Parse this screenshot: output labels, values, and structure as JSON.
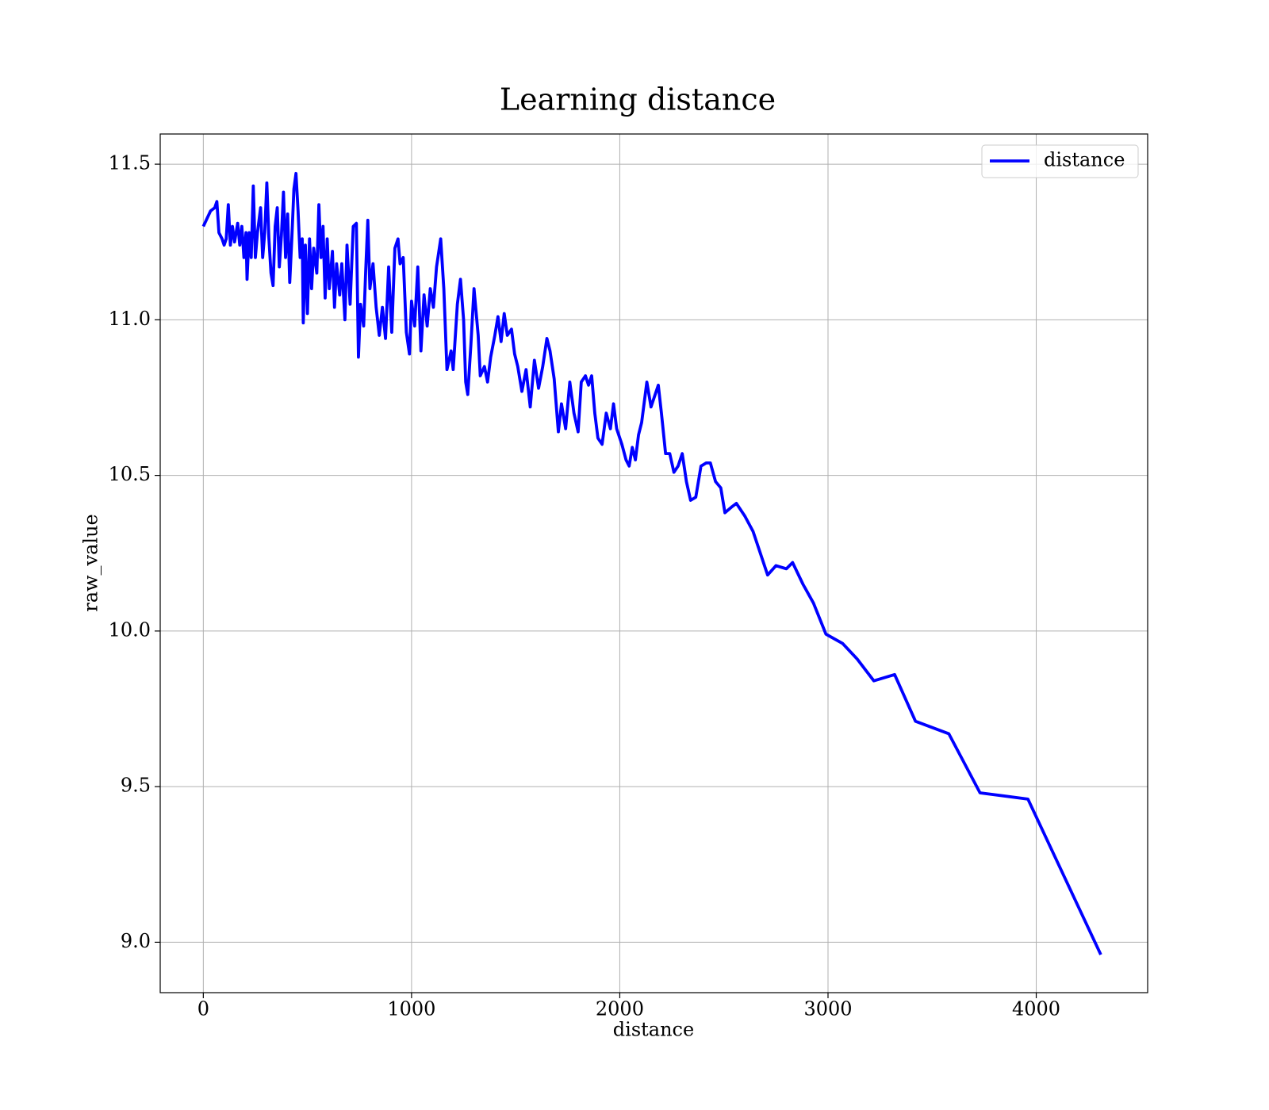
{
  "chart_data": {
    "type": "line",
    "title": "Learning distance",
    "xlabel": "distance",
    "ylabel": "raw_value",
    "x": [
      0,
      35,
      55,
      65,
      75,
      90,
      100,
      110,
      120,
      130,
      140,
      150,
      165,
      175,
      185,
      195,
      205,
      210,
      220,
      230,
      240,
      250,
      260,
      275,
      285,
      295,
      305,
      315,
      325,
      335,
      345,
      355,
      365,
      375,
      385,
      395,
      405,
      415,
      425,
      435,
      445,
      455,
      465,
      475,
      480,
      490,
      500,
      510,
      520,
      530,
      545,
      555,
      565,
      575,
      585,
      595,
      605,
      620,
      630,
      640,
      655,
      665,
      680,
      690,
      705,
      720,
      735,
      745,
      755,
      770,
      780,
      790,
      800,
      815,
      830,
      845,
      860,
      875,
      890,
      905,
      920,
      935,
      945,
      960,
      975,
      990,
      1000,
      1015,
      1030,
      1045,
      1060,
      1075,
      1090,
      1105,
      1120,
      1140,
      1155,
      1170,
      1190,
      1200,
      1220,
      1235,
      1250,
      1260,
      1270,
      1285,
      1300,
      1320,
      1330,
      1350,
      1365,
      1380,
      1400,
      1415,
      1430,
      1445,
      1460,
      1480,
      1495,
      1510,
      1530,
      1550,
      1570,
      1590,
      1610,
      1630,
      1650,
      1665,
      1685,
      1705,
      1720,
      1740,
      1760,
      1780,
      1800,
      1815,
      1835,
      1850,
      1865,
      1880,
      1895,
      1915,
      1935,
      1955,
      1970,
      1985,
      2010,
      2030,
      2045,
      2060,
      2075,
      2090,
      2105,
      2130,
      2150,
      2185,
      2200,
      2220,
      2240,
      2260,
      2280,
      2300,
      2320,
      2340,
      2365,
      2390,
      2415,
      2435,
      2460,
      2485,
      2505,
      2540,
      2560,
      2600,
      2640,
      2710,
      2750,
      2800,
      2830,
      2880,
      2930,
      2990,
      3070,
      3140,
      3220,
      3320,
      3420,
      3580,
      3730,
      3960,
      4310
    ],
    "series": [
      {
        "name": "distance",
        "color": "#0000ff",
        "values": [
          11.3,
          11.35,
          11.36,
          11.38,
          11.28,
          11.26,
          11.24,
          11.26,
          11.37,
          11.24,
          11.3,
          11.25,
          11.31,
          11.24,
          11.3,
          11.2,
          11.28,
          11.13,
          11.28,
          11.2,
          11.43,
          11.2,
          11.28,
          11.36,
          11.2,
          11.28,
          11.44,
          11.26,
          11.15,
          11.11,
          11.3,
          11.36,
          11.17,
          11.27,
          11.41,
          11.2,
          11.34,
          11.12,
          11.26,
          11.42,
          11.47,
          11.35,
          11.2,
          11.26,
          10.99,
          11.24,
          11.02,
          11.26,
          11.1,
          11.23,
          11.15,
          11.37,
          11.2,
          11.3,
          11.07,
          11.26,
          11.1,
          11.22,
          11.04,
          11.18,
          11.08,
          11.18,
          11.0,
          11.24,
          11.05,
          11.3,
          11.31,
          10.88,
          11.05,
          10.98,
          11.16,
          11.32,
          11.1,
          11.18,
          11.04,
          10.95,
          11.04,
          10.94,
          11.17,
          10.96,
          11.23,
          11.26,
          11.18,
          11.2,
          10.96,
          10.89,
          11.06,
          10.98,
          11.17,
          10.9,
          11.08,
          10.98,
          11.1,
          11.04,
          11.17,
          11.26,
          11.1,
          10.84,
          10.9,
          10.84,
          11.05,
          11.13,
          11.0,
          10.8,
          10.76,
          10.92,
          11.1,
          10.95,
          10.82,
          10.85,
          10.8,
          10.88,
          10.95,
          11.01,
          10.93,
          11.02,
          10.95,
          10.97,
          10.89,
          10.85,
          10.77,
          10.84,
          10.72,
          10.87,
          10.78,
          10.85,
          10.94,
          10.9,
          10.81,
          10.64,
          10.73,
          10.65,
          10.8,
          10.7,
          10.64,
          10.8,
          10.82,
          10.79,
          10.82,
          10.7,
          10.62,
          10.6,
          10.7,
          10.65,
          10.73,
          10.65,
          10.6,
          10.55,
          10.53,
          10.59,
          10.55,
          10.63,
          10.67,
          10.8,
          10.72,
          10.79,
          10.7,
          10.57,
          10.57,
          10.51,
          10.53,
          10.57,
          10.48,
          10.42,
          10.43,
          10.53,
          10.54,
          10.54,
          10.48,
          10.46,
          10.38,
          10.4,
          10.41,
          10.37,
          10.32,
          10.18,
          10.21,
          10.2,
          10.22,
          10.15,
          10.09,
          9.99,
          9.96,
          9.91,
          9.84,
          9.86,
          9.71,
          9.67,
          9.48,
          9.46,
          8.96
        ]
      }
    ],
    "xlim": [
      -207,
      4535
    ],
    "xticks": [
      0,
      1000,
      2000,
      3000,
      4000
    ],
    "ylim": [
      8.838,
      11.597
    ],
    "yticks": [
      {
        "value": 9.0,
        "label": "9.0"
      },
      9.5,
      {
        "value": 10.0,
        "label": "10.0"
      },
      10.5,
      {
        "value": 11.0,
        "label": "11.0"
      },
      11.5
    ],
    "grid": true,
    "legend": "upper right"
  }
}
